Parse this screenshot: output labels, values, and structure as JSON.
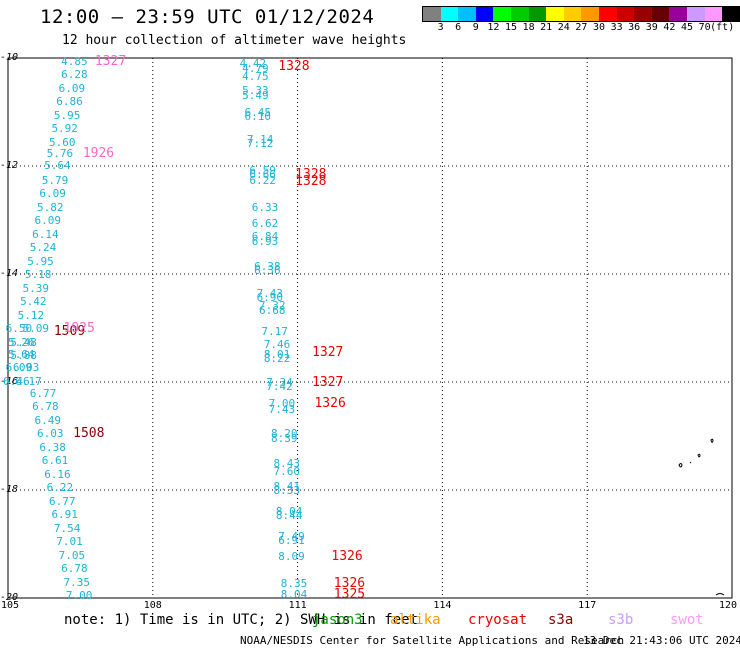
{
  "header": {
    "title": "12:00 — 23:59 UTC 01/12/2024",
    "subtitle": "12 hour collection of altimeter wave heights"
  },
  "colorbar": {
    "swatches": [
      "#808080",
      "#00ffff",
      "#00bfff",
      "#0000ff",
      "#00ff00",
      "#00cc00",
      "#009900",
      "#ffff00",
      "#ffcc00",
      "#ff9900",
      "#ff0000",
      "#cc0000",
      "#990000",
      "#660000",
      "#990099",
      "#cc99ff",
      "#ff99ff",
      "#000000"
    ],
    "labels": [
      "3",
      "6",
      "9",
      "12",
      "15",
      "18",
      "21",
      "24",
      "27",
      "30",
      "33",
      "36",
      "39",
      "42",
      "45",
      "70",
      "(ft)"
    ]
  },
  "axes": {
    "y_ticks": [
      "-10",
      "-12",
      "-14",
      "-16",
      "-18",
      "-20"
    ],
    "x_ticks": [
      "105",
      "108",
      "111",
      "114",
      "117",
      "120"
    ]
  },
  "track_left": [
    {
      "v": "4.85",
      "lon": 106.1,
      "lat": -10.05
    },
    {
      "v": "6.28",
      "lon": 106.1,
      "lat": -10.3
    },
    {
      "v": "6.09",
      "lon": 106.05,
      "lat": -10.55
    },
    {
      "v": "6.86",
      "lon": 106.0,
      "lat": -10.8
    },
    {
      "v": "5.95",
      "lon": 105.95,
      "lat": -11.05
    },
    {
      "v": "5.92",
      "lon": 105.9,
      "lat": -11.3
    },
    {
      "v": "5.60",
      "lon": 105.85,
      "lat": -11.55
    },
    {
      "v": "5.76",
      "lon": 105.8,
      "lat": -11.75
    },
    {
      "v": "5.64",
      "lon": 105.75,
      "lat": -11.98
    },
    {
      "v": "5.79",
      "lon": 105.7,
      "lat": -12.25
    },
    {
      "v": "6.09",
      "lon": 105.65,
      "lat": -12.5
    },
    {
      "v": "5.82",
      "lon": 105.6,
      "lat": -12.75
    },
    {
      "v": "6.09",
      "lon": 105.55,
      "lat": -13.0
    },
    {
      "v": "6.14",
      "lon": 105.5,
      "lat": -13.25
    },
    {
      "v": "5.24",
      "lon": 105.45,
      "lat": -13.5
    },
    {
      "v": "5.95",
      "lon": 105.4,
      "lat": -13.75
    },
    {
      "v": "5.18",
      "lon": 105.35,
      "lat": -14.0
    },
    {
      "v": "5.39",
      "lon": 105.3,
      "lat": -14.25
    },
    {
      "v": "5.42",
      "lon": 105.25,
      "lat": -14.5
    },
    {
      "v": "5.12",
      "lon": 105.2,
      "lat": -14.75
    },
    {
      "v": "6.50",
      "lon": 104.95,
      "lat": -15.0
    },
    {
      "v": "5.09",
      "lon": 105.3,
      "lat": -15.0
    },
    {
      "v": "5.26",
      "lon": 105.0,
      "lat": -15.25
    },
    {
      "v": "5.48",
      "lon": 105.05,
      "lat": -15.25
    },
    {
      "v": "5.64",
      "lon": 105.0,
      "lat": -15.48
    },
    {
      "v": "5.88",
      "lon": 105.05,
      "lat": -15.5
    },
    {
      "v": "6.09",
      "lon": 104.95,
      "lat": -15.73
    },
    {
      "v": "6.03",
      "lon": 105.1,
      "lat": -15.73
    },
    {
      "v": "6.46",
      "lon": 104.9,
      "lat": -15.98
    },
    {
      "v": "6.17",
      "lon": 105.15,
      "lat": -15.98
    },
    {
      "v": "6.77",
      "lon": 105.45,
      "lat": -16.2
    },
    {
      "v": "6.78",
      "lon": 105.5,
      "lat": -16.45
    },
    {
      "v": "6.49",
      "lon": 105.55,
      "lat": -16.7
    },
    {
      "v": "6.03",
      "lon": 105.6,
      "lat": -16.95
    },
    {
      "v": "6.38",
      "lon": 105.65,
      "lat": -17.2
    },
    {
      "v": "6.61",
      "lon": 105.7,
      "lat": -17.45
    },
    {
      "v": "6.16",
      "lon": 105.75,
      "lat": -17.7
    },
    {
      "v": "6.22",
      "lon": 105.8,
      "lat": -17.95
    },
    {
      "v": "6.77",
      "lon": 105.85,
      "lat": -18.2
    },
    {
      "v": "6.91",
      "lon": 105.9,
      "lat": -18.45
    },
    {
      "v": "7.54",
      "lon": 105.95,
      "lat": -18.7
    },
    {
      "v": "7.01",
      "lon": 106.0,
      "lat": -18.95
    },
    {
      "v": "7.05",
      "lon": 106.05,
      "lat": -19.2
    },
    {
      "v": "6.78",
      "lon": 106.1,
      "lat": -19.45
    },
    {
      "v": "7.35",
      "lon": 106.15,
      "lat": -19.7
    },
    {
      "v": "7.00",
      "lon": 106.2,
      "lat": -19.95
    }
  ],
  "track_mid": [
    {
      "v": "4.42",
      "lon": 109.8,
      "lat": -10.1
    },
    {
      "v": "4.79",
      "lon": 109.85,
      "lat": -10.18
    },
    {
      "v": "4.75",
      "lon": 109.85,
      "lat": -10.33
    },
    {
      "v": "5.33",
      "lon": 109.85,
      "lat": -10.6
    },
    {
      "v": "5.49",
      "lon": 109.85,
      "lat": -10.68
    },
    {
      "v": "6.45",
      "lon": 109.9,
      "lat": -11.0
    },
    {
      "v": "6.10",
      "lon": 109.9,
      "lat": -11.08
    },
    {
      "v": "7.14",
      "lon": 109.95,
      "lat": -11.5
    },
    {
      "v": "7.12",
      "lon": 109.95,
      "lat": -11.58
    },
    {
      "v": "6.59",
      "lon": 110.0,
      "lat": -12.08
    },
    {
      "v": "6.66",
      "lon": 110.0,
      "lat": -12.15
    },
    {
      "v": "6.22",
      "lon": 110.0,
      "lat": -12.25
    },
    {
      "v": "6.33",
      "lon": 110.05,
      "lat": -12.75
    },
    {
      "v": "6.62",
      "lon": 110.05,
      "lat": -13.05
    },
    {
      "v": "6.84",
      "lon": 110.05,
      "lat": -13.3
    },
    {
      "v": "6.93",
      "lon": 110.05,
      "lat": -13.38
    },
    {
      "v": "6.38",
      "lon": 110.1,
      "lat": -13.85
    },
    {
      "v": "6.36",
      "lon": 110.1,
      "lat": -13.93
    },
    {
      "v": "7.43",
      "lon": 110.15,
      "lat": -14.35
    },
    {
      "v": "6.90",
      "lon": 110.15,
      "lat": -14.43
    },
    {
      "v": "7.32",
      "lon": 110.2,
      "lat": -14.58
    },
    {
      "v": "6.68",
      "lon": 110.2,
      "lat": -14.66
    },
    {
      "v": "7.17",
      "lon": 110.25,
      "lat": -15.05
    },
    {
      "v": "7.46",
      "lon": 110.3,
      "lat": -15.3
    },
    {
      "v": "8.01",
      "lon": 110.3,
      "lat": -15.48
    },
    {
      "v": "8.22",
      "lon": 110.3,
      "lat": -15.56
    },
    {
      "v": "7.34",
      "lon": 110.35,
      "lat": -16.0
    },
    {
      "v": "7.42",
      "lon": 110.35,
      "lat": -16.08
    },
    {
      "v": "7.00",
      "lon": 110.4,
      "lat": -16.38
    },
    {
      "v": "7.43",
      "lon": 110.4,
      "lat": -16.5
    },
    {
      "v": "8.20",
      "lon": 110.45,
      "lat": -16.95
    },
    {
      "v": "8.39",
      "lon": 110.45,
      "lat": -17.03
    },
    {
      "v": "8.43",
      "lon": 110.5,
      "lat": -17.5
    },
    {
      "v": "7.60",
      "lon": 110.5,
      "lat": -17.65
    },
    {
      "v": "8.41",
      "lon": 110.5,
      "lat": -17.92
    },
    {
      "v": "8.33",
      "lon": 110.5,
      "lat": -18.0
    },
    {
      "v": "8.04",
      "lon": 110.55,
      "lat": -18.38
    },
    {
      "v": "8.44",
      "lon": 110.55,
      "lat": -18.46
    },
    {
      "v": "7.49",
      "lon": 110.6,
      "lat": -18.85
    },
    {
      "v": "6.91",
      "lon": 110.6,
      "lat": -18.93
    },
    {
      "v": "8.09",
      "lon": 110.6,
      "lat": -19.23
    },
    {
      "v": "8.35",
      "lon": 110.65,
      "lat": -19.72
    },
    {
      "v": "8.04",
      "lon": 110.65,
      "lat": -19.92
    }
  ],
  "pass_labels": [
    {
      "text": "1327",
      "color": "#ff66cc",
      "lon": 106.8,
      "lat": -10.05
    },
    {
      "text": "1926",
      "color": "#ff66cc",
      "lon": 106.55,
      "lat": -11.75
    },
    {
      "text": "1328",
      "color": "#ee0000",
      "lon": 110.6,
      "lat": -10.15
    },
    {
      "text": "1328",
      "color": "#ee0000",
      "lon": 110.95,
      "lat": -12.15
    },
    {
      "text": "1328",
      "color": "#ee0000",
      "lon": 110.95,
      "lat": -12.28
    },
    {
      "text": "1509",
      "color": "#880000",
      "lon": 105.95,
      "lat": -15.05
    },
    {
      "text": "1925",
      "color": "#ff66cc",
      "lon": 106.15,
      "lat": -15.0
    },
    {
      "text": "1327",
      "color": "#ee0000",
      "lon": 111.3,
      "lat": -15.45
    },
    {
      "text": "1327",
      "color": "#ee0000",
      "lon": 111.3,
      "lat": -16.0
    },
    {
      "text": "1326",
      "color": "#ee0000",
      "lon": 111.35,
      "lat": -16.38
    },
    {
      "text": "1508",
      "color": "#880000",
      "lon": 106.35,
      "lat": -16.95
    },
    {
      "text": "1326",
      "color": "#ee0000",
      "lon": 111.7,
      "lat": -19.23
    },
    {
      "text": "1326",
      "color": "#ee0000",
      "lon": 111.75,
      "lat": -19.72
    },
    {
      "text": "1325",
      "color": "#ee0000",
      "lon": 111.75,
      "lat": -19.92
    }
  ],
  "note": "note: 1) Time is in UTC; 2) SWH is in feet",
  "legend": [
    {
      "label": "jason3",
      "color": "#009900"
    },
    {
      "label": "altika",
      "color": "#ff9900"
    },
    {
      "label": "cryosat",
      "color": "#ee0000"
    },
    {
      "label": "s3a",
      "color": "#880000"
    },
    {
      "label": "s3b",
      "color": "#cc99ff"
    },
    {
      "label": "swot",
      "color": "#ff99ff"
    }
  ],
  "footer": {
    "credit": "NOAA/NESDIS Center for Satellite Applications and Research",
    "time": "13 Dec 21:43:06 UTC 2024"
  }
}
